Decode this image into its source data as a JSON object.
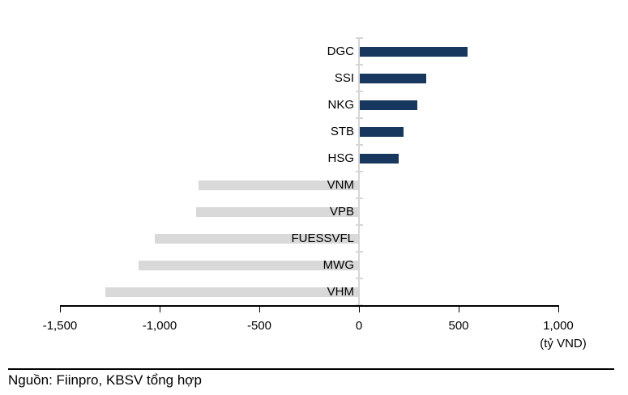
{
  "chart_data": {
    "type": "bar",
    "orientation": "horizontal",
    "title": "",
    "categories": [
      "DGC",
      "SSI",
      "NKG",
      "STB",
      "HSG",
      "VNM",
      "VPB",
      "FUESSVFL",
      "MWG",
      "VHM"
    ],
    "values": [
      540,
      335,
      290,
      220,
      195,
      -800,
      -815,
      -1020,
      -1100,
      -1270
    ],
    "xlabel": "(tỷ VND)",
    "xlim": [
      -1500,
      1000
    ],
    "x_ticks": [
      -1500,
      -1000,
      -500,
      0,
      500,
      1000
    ],
    "x_tick_labels": [
      "-1,500",
      "-1,000",
      "-500",
      "0",
      "500",
      "1,000"
    ],
    "grid": false,
    "legend_position": "none",
    "colors": {
      "positive_bar": "#17375E",
      "negative_bar": "#D9D9D9",
      "category_axis": "#D6D6D6",
      "value_axis": "#000000",
      "text": "#000000"
    }
  },
  "footer": {
    "source_text": "Nguồn: Fiinpro, KBSV tổng hợp"
  }
}
